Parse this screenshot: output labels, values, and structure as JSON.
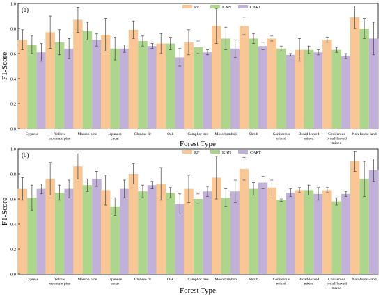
{
  "colors": {
    "RF": "#f9c795",
    "KNN": "#add58c",
    "CART": "#c1b1d8",
    "error": "#444444",
    "axis": "#000000"
  },
  "chart_data": [
    {
      "type": "bar",
      "panel_label": "(a)",
      "xlabel": "Forest Type",
      "ylabel": "F1-Score",
      "ylim": [
        0.0,
        1.0
      ],
      "yticks": [
        "0.0",
        "0.2",
        "0.4",
        "0.6",
        "0.8",
        "1.0"
      ],
      "legend_position": "top-center",
      "categories": [
        "Cypress",
        "Yellow mountain pine",
        "Masson pine",
        "Japanese cedar",
        "Chinese fir",
        "Oak",
        "Camphor tree",
        "Moso bamboo",
        "Shrub",
        "Coniferous mixed",
        "Broad-leaved mixed",
        "Coniferous broad-leaved mixed",
        "Non-forest-land"
      ],
      "series": [
        {
          "name": "RF",
          "values": [
            0.71,
            0.77,
            0.87,
            0.75,
            0.79,
            0.68,
            0.69,
            0.82,
            0.82,
            0.72,
            0.63,
            0.71,
            0.89
          ],
          "errors": [
            0.08,
            0.13,
            0.1,
            0.13,
            0.07,
            0.08,
            0.1,
            0.14,
            0.07,
            0.02,
            0.09,
            0.02,
            0.09
          ]
        },
        {
          "name": "KNN",
          "values": [
            0.67,
            0.69,
            0.78,
            0.64,
            0.7,
            0.68,
            0.65,
            0.72,
            0.72,
            0.64,
            0.63,
            0.63,
            0.8
          ],
          "errors": [
            0.07,
            0.1,
            0.07,
            0.09,
            0.04,
            0.05,
            0.05,
            0.09,
            0.04,
            0.02,
            0.03,
            0.02,
            0.08
          ]
        },
        {
          "name": "CART",
          "values": [
            0.61,
            0.64,
            0.71,
            0.64,
            0.66,
            0.57,
            0.61,
            0.64,
            0.66,
            0.59,
            0.61,
            0.58,
            0.72
          ],
          "errors": [
            0.07,
            0.08,
            0.05,
            0.03,
            0.02,
            0.07,
            0.02,
            0.07,
            0.03,
            0.01,
            0.02,
            0.02,
            0.13
          ]
        }
      ]
    },
    {
      "type": "bar",
      "panel_label": "(b)",
      "xlabel": "Forest Type",
      "ylabel": "F1-Score",
      "ylim": [
        0.0,
        1.0
      ],
      "yticks": [
        "0.0",
        "0.2",
        "0.4",
        "0.6",
        "0.8",
        "1.0"
      ],
      "legend_position": "top-center",
      "categories": [
        "Cypress",
        "Yellow mountain pine",
        "Masson pine",
        "Japanese cedar",
        "Chinese fir",
        "Oak",
        "Camphor tree",
        "Moso bamboo",
        "Shrub",
        "Coniferous mixed",
        "Broad-leaved mixed",
        "Coniferous broad-leaved mixed",
        "Non-forest-land"
      ],
      "series": [
        {
          "name": "RF",
          "values": [
            0.68,
            0.76,
            0.86,
            0.67,
            0.8,
            0.72,
            0.68,
            0.77,
            0.84,
            0.69,
            0.67,
            0.67,
            0.9
          ],
          "errors": [
            0.09,
            0.13,
            0.1,
            0.12,
            0.08,
            0.13,
            0.11,
            0.17,
            0.09,
            0.06,
            0.02,
            0.02,
            0.08
          ]
        },
        {
          "name": "KNN",
          "values": [
            0.61,
            0.65,
            0.71,
            0.54,
            0.66,
            0.65,
            0.6,
            0.61,
            0.68,
            0.59,
            0.67,
            0.58,
            0.76
          ],
          "errors": [
            0.1,
            0.06,
            0.05,
            0.07,
            0.05,
            0.04,
            0.04,
            0.07,
            0.05,
            0.01,
            0.04,
            0.03,
            0.14
          ]
        },
        {
          "name": "CART",
          "values": [
            0.68,
            0.68,
            0.76,
            0.68,
            0.71,
            0.56,
            0.66,
            0.66,
            0.73,
            0.65,
            0.64,
            0.64,
            0.83
          ],
          "errors": [
            0.04,
            0.07,
            0.06,
            0.07,
            0.03,
            0.08,
            0.04,
            0.09,
            0.05,
            0.03,
            0.05,
            0.02,
            0.09
          ]
        }
      ]
    }
  ]
}
